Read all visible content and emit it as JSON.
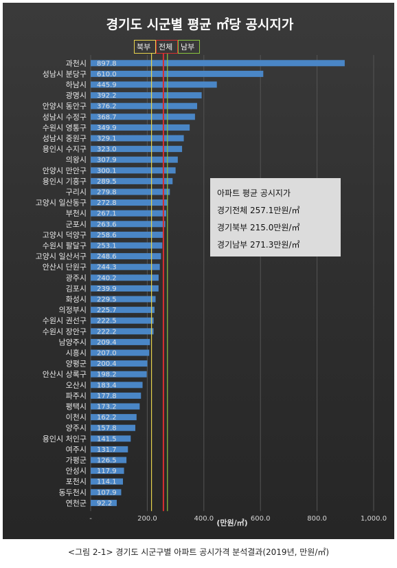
{
  "chart_data": {
    "type": "bar",
    "orientation": "horizontal",
    "title": "경기도 시군별 평균 ㎡당 공시지가",
    "xlabel": "(만원/㎡)",
    "xlim": [
      0,
      1000
    ],
    "x_ticks": [
      "-",
      "200.0",
      "400.0",
      "600.0",
      "800.0",
      "1,000.0"
    ],
    "grid": true,
    "categories": [
      "과천시",
      "성남시 분당구",
      "하남시",
      "광명시",
      "안양시 동안구",
      "성남시 수정구",
      "수원시 영통구",
      "성남시 중원구",
      "용인시 수지구",
      "의왕시",
      "안양시 만안구",
      "용인시 기흥구",
      "구리시",
      "고양시 일산동구",
      "부천시",
      "군포시",
      "고양시 덕양구",
      "수원시 팔달구",
      "고양시 일산서구",
      "안산시 단원구",
      "광주시",
      "김포시",
      "화성시",
      "의정부시",
      "수원시 권선구",
      "수원시 장안구",
      "남양주시",
      "시흥시",
      "양평군",
      "안산시 상록구",
      "오산시",
      "파주시",
      "평택시",
      "이천시",
      "양주시",
      "용인시 처인구",
      "여주시",
      "가평군",
      "안성시",
      "포천시",
      "동두천시",
      "연천군"
    ],
    "values": [
      897.8,
      610.0,
      445.9,
      392.2,
      376.2,
      368.7,
      349.9,
      329.1,
      323.0,
      307.9,
      300.1,
      289.5,
      279.8,
      272.8,
      267.1,
      263.6,
      258.6,
      253.1,
      248.6,
      244.3,
      240.2,
      239.9,
      229.5,
      225.7,
      222.5,
      222.2,
      209.4,
      207.0,
      200.4,
      198.2,
      183.4,
      177.8,
      173.2,
      162.2,
      157.8,
      141.5,
      131.7,
      126.5,
      117.9,
      114.1,
      107.9,
      92.2
    ],
    "value_labels": [
      "897.8",
      "610.0",
      "445.9",
      "392.2",
      "376.2",
      "368.7",
      "349.9",
      "329.1",
      "323.0",
      "307.9",
      "300.1",
      "289.5",
      "279.8",
      "272.8",
      "267.1",
      "263.6",
      "258.6",
      "253.1",
      "248.6",
      "244.3",
      "240.2",
      "239.9",
      "229.5",
      "225.7",
      "222.5",
      "222.2",
      "209.4",
      "207.0",
      "200.4",
      "198.2",
      "183.4",
      "177.8",
      "173.2",
      "162.2",
      "157.8",
      "141.5",
      "131.7",
      "126.5",
      "117.9",
      "114.1",
      "107.9",
      "92.2"
    ],
    "reference_lines": [
      {
        "label": "북부",
        "value": 215.0,
        "color": "#e8d44d"
      },
      {
        "label": "전체",
        "value": 257.1,
        "color": "#d93030"
      },
      {
        "label": "남부",
        "value": 271.3,
        "color": "#8cc63f"
      }
    ],
    "bar_color": "#4a86c6"
  },
  "annotation": {
    "heading": "아파트 평균 공시지가",
    "lines": [
      "경기전체 257.1만원/㎡",
      "경기북부 215.0만원/㎡",
      "경기남부 271.3만원/㎡"
    ]
  },
  "caption": "<그림 2-1> 경기도 시군구별 아파트 공시가격 분석결과(2019년, 만원/㎡)"
}
